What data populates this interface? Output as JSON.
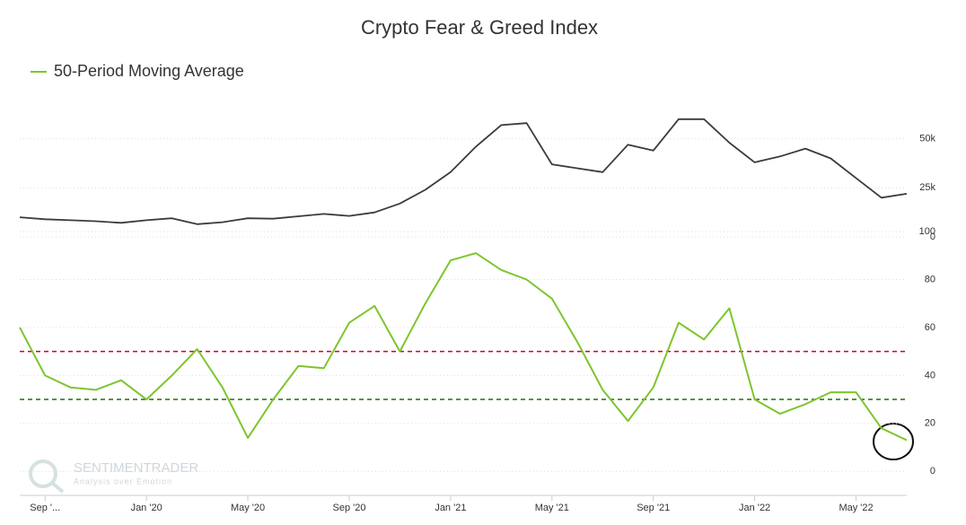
{
  "chart_data": [
    {
      "type": "line",
      "title": "Crypto Fear & Greed Index",
      "x": [
        "2019-08",
        "2019-09",
        "2019-10",
        "2019-11",
        "2019-12",
        "2020-01",
        "2020-02",
        "2020-03",
        "2020-04",
        "2020-05",
        "2020-06",
        "2020-07",
        "2020-08",
        "2020-09",
        "2020-10",
        "2020-11",
        "2020-12",
        "2021-01",
        "2021-02",
        "2021-03",
        "2021-04",
        "2021-05",
        "2021-06",
        "2021-07",
        "2021-08",
        "2021-09",
        "2021-10",
        "2021-11",
        "2021-12",
        "2022-01",
        "2022-02",
        "2022-03",
        "2022-04",
        "2022-05",
        "2022-06",
        "2022-07"
      ],
      "values": [
        10000,
        9000,
        8500,
        8000,
        7200,
        8500,
        9500,
        6500,
        7500,
        9500,
        9300,
        10500,
        11700,
        10700,
        12500,
        17000,
        24000,
        33000,
        46000,
        57000,
        58000,
        37000,
        35000,
        33000,
        47000,
        44000,
        60000,
        60000,
        48000,
        38000,
        41000,
        45000,
        40000,
        30000,
        20000,
        22000
      ],
      "color": "#3a3a3f",
      "xlim": [
        "2019-08",
        "2022-07"
      ],
      "ylim": [
        0,
        75000
      ],
      "yticks": [
        0,
        {
          "value": 25000,
          "label": "25k"
        },
        {
          "value": 50000,
          "label": "50k"
        }
      ],
      "grid": true,
      "watermark": [
        "SENTIMENTRADER",
        "Analysis over Emotion"
      ]
    },
    {
      "type": "line",
      "x": [
        "2019-08",
        "2019-09",
        "2019-10",
        "2019-11",
        "2019-12",
        "2020-01",
        "2020-02",
        "2020-03",
        "2020-04",
        "2020-05",
        "2020-06",
        "2020-07",
        "2020-08",
        "2020-09",
        "2020-10",
        "2020-11",
        "2020-12",
        "2021-01",
        "2021-02",
        "2021-03",
        "2021-04",
        "2021-05",
        "2021-06",
        "2021-07",
        "2021-08",
        "2021-09",
        "2021-10",
        "2021-11",
        "2021-12",
        "2022-01",
        "2022-02",
        "2022-03",
        "2022-04",
        "2022-05",
        "2022-06",
        "2022-07"
      ],
      "series": [
        {
          "name": "50-Period Moving Average",
          "color": "#7dc52e",
          "values": [
            60,
            40,
            35,
            34,
            38,
            30,
            40,
            51,
            35,
            14,
            30,
            44,
            43,
            62,
            69,
            50,
            70,
            88,
            91,
            84,
            80,
            72,
            54,
            34,
            21,
            35,
            62,
            55,
            68,
            30,
            24,
            28,
            33,
            33,
            18,
            13
          ]
        }
      ],
      "hlines": [
        {
          "value": 50,
          "color": "#d0021b"
        },
        {
          "value": 30,
          "color": "#2e7d1a"
        }
      ],
      "xlim": [
        "2019-08",
        "2022-07"
      ],
      "xticks": [
        {
          "value": "2019-09",
          "label": "Sep '..."
        },
        {
          "value": "2020-01",
          "label": "Jan '20"
        },
        {
          "value": "2020-05",
          "label": "May '20"
        },
        {
          "value": "2020-09",
          "label": "Sep '20"
        },
        {
          "value": "2021-01",
          "label": "Jan '21"
        },
        {
          "value": "2021-05",
          "label": "May '21"
        },
        {
          "value": "2021-09",
          "label": "Sep '21"
        },
        {
          "value": "2022-01",
          "label": "Jan '22"
        },
        {
          "value": "2022-05",
          "label": "May '22"
        }
      ],
      "ylim": [
        -10,
        100
      ],
      "yticks": [
        0,
        20,
        40,
        60,
        80,
        100
      ],
      "grid": true,
      "legend": "top-left"
    }
  ]
}
